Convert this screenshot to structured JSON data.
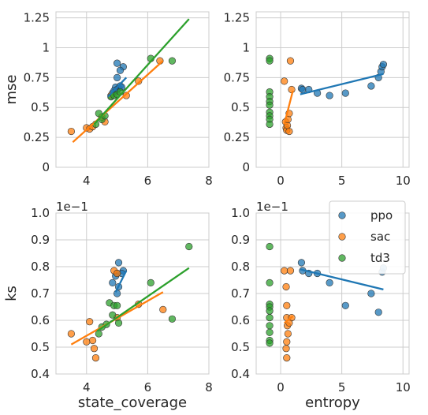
{
  "chart_data": {
    "type": "scatter",
    "colors": {
      "ppo": "#1f77b4",
      "sac": "#ff7f0e",
      "td3": "#2ca02c"
    },
    "grid": true,
    "legend": {
      "placement": "top-right of bottom-right panel",
      "entries": [
        "ppo",
        "sac",
        "td3"
      ]
    },
    "panels": [
      {
        "id": "mse_vs_state_coverage",
        "xlabel": "",
        "ylabel": "mse",
        "xlim": [
          3,
          8
        ],
        "ylim": [
          0,
          1.3
        ],
        "xticks": [
          4,
          6,
          8
        ],
        "xtick_labels": [
          "4",
          "6",
          "8"
        ],
        "yticks": [
          0,
          0.25,
          0.5,
          0.75,
          1,
          1.25
        ],
        "ytick_labels": [
          "0",
          "0.25",
          "0.5",
          "0.75",
          "1",
          "1.25"
        ],
        "offset_text": "",
        "series": [
          {
            "name": "ppo",
            "points": [
              [
                5.0,
                0.87
              ],
              [
                5.2,
                0.84
              ],
              [
                5.1,
                0.81
              ],
              [
                5.0,
                0.75
              ],
              [
                4.95,
                0.67
              ],
              [
                5.05,
                0.66
              ],
              [
                5.0,
                0.65
              ],
              [
                4.9,
                0.64
              ],
              [
                4.85,
                0.62
              ],
              [
                5.1,
                0.68
              ],
              [
                5.15,
                0.67
              ]
            ],
            "fit": [
              [
                4.7,
                0.59
              ],
              [
                5.3,
                0.75
              ]
            ]
          },
          {
            "name": "sac",
            "points": [
              [
                3.5,
                0.3
              ],
              [
                4.0,
                0.33
              ],
              [
                4.1,
                0.32
              ],
              [
                4.2,
                0.34
              ],
              [
                4.6,
                0.38
              ],
              [
                4.5,
                0.42
              ],
              [
                5.3,
                0.6
              ],
              [
                5.7,
                0.72
              ],
              [
                6.4,
                0.89
              ],
              [
                4.8,
                0.6
              ]
            ],
            "fit": [
              [
                3.55,
                0.21
              ],
              [
                6.5,
                0.89
              ]
            ]
          },
          {
            "name": "td3",
            "points": [
              [
                4.3,
                0.36
              ],
              [
                4.5,
                0.4
              ],
              [
                4.6,
                0.43
              ],
              [
                4.8,
                0.59
              ],
              [
                4.9,
                0.6
              ],
              [
                5.0,
                0.61
              ],
              [
                5.1,
                0.63
              ],
              [
                6.1,
                0.91
              ],
              [
                6.8,
                0.89
              ],
              [
                4.4,
                0.45
              ]
            ],
            "fit": [
              [
                4.25,
                0.36
              ],
              [
                7.35,
                1.24
              ]
            ]
          }
        ]
      },
      {
        "id": "mse_vs_entropy",
        "xlabel": "",
        "ylabel": "",
        "xlim": [
          -2,
          10.5
        ],
        "ylim": [
          0,
          1.3
        ],
        "xticks": [
          0,
          5,
          10
        ],
        "xtick_labels": [
          "0",
          "5",
          "10"
        ],
        "yticks": [
          0,
          0.25,
          0.5,
          0.75,
          1,
          1.25
        ],
        "ytick_labels": [
          "0",
          "0.25",
          "0.5",
          "0.75",
          "1",
          "1.25"
        ],
        "offset_text": "",
        "series": [
          {
            "name": "ppo",
            "points": [
              [
                1.7,
                0.66
              ],
              [
                1.8,
                0.65
              ],
              [
                2.3,
                0.65
              ],
              [
                3.0,
                0.62
              ],
              [
                4.0,
                0.6
              ],
              [
                5.3,
                0.62
              ],
              [
                7.4,
                0.68
              ],
              [
                8.0,
                0.75
              ],
              [
                8.2,
                0.8
              ],
              [
                8.3,
                0.84
              ],
              [
                8.4,
                0.86
              ]
            ],
            "fit": [
              [
                1.6,
                0.61
              ],
              [
                8.4,
                0.78
              ]
            ]
          },
          {
            "name": "sac",
            "points": [
              [
                0.3,
                0.72
              ],
              [
                0.4,
                0.38
              ],
              [
                0.45,
                0.33
              ],
              [
                0.5,
                0.31
              ],
              [
                0.55,
                0.35
              ],
              [
                0.6,
                0.4
              ],
              [
                0.7,
                0.3
              ],
              [
                0.8,
                0.89
              ],
              [
                0.9,
                0.65
              ],
              [
                0.7,
                0.45
              ]
            ],
            "fit": [
              [
                0.3,
                0.36
              ],
              [
                1.0,
                0.64
              ]
            ]
          },
          {
            "name": "td3",
            "points": [
              [
                -0.9,
                0.91
              ],
              [
                -0.9,
                0.89
              ],
              [
                -0.9,
                0.63
              ],
              [
                -0.9,
                0.59
              ],
              [
                -0.9,
                0.55
              ],
              [
                -0.9,
                0.52
              ],
              [
                -0.9,
                0.46
              ],
              [
                -0.9,
                0.43
              ],
              [
                -0.9,
                0.4
              ],
              [
                -0.9,
                0.36
              ]
            ],
            "fit": []
          }
        ]
      },
      {
        "id": "ks_vs_state_coverage",
        "xlabel": "state_coverage",
        "ylabel": "ks",
        "xlim": [
          3,
          8
        ],
        "ylim": [
          0.04,
          0.1
        ],
        "xticks": [
          4,
          6,
          8
        ],
        "xtick_labels": [
          "4",
          "6",
          "8"
        ],
        "yticks": [
          0.04,
          0.05,
          0.06,
          0.07,
          0.08,
          0.09,
          0.1
        ],
        "ytick_labels": [
          "0.4",
          "0.5",
          "0.6",
          "0.7",
          "0.8",
          "0.9",
          "1.0"
        ],
        "offset_text": "1e−1",
        "series": [
          {
            "name": "ppo",
            "points": [
              [
                5.05,
                0.0815
              ],
              [
                5.2,
                0.0785
              ],
              [
                5.15,
                0.0775
              ],
              [
                5.0,
                0.0775
              ],
              [
                4.95,
                0.0765
              ],
              [
                4.85,
                0.074
              ],
              [
                5.05,
                0.0725
              ],
              [
                5.0,
                0.07
              ]
            ],
            "fit": [
              [
                4.95,
                0.0705
              ],
              [
                5.3,
                0.0785
              ]
            ]
          },
          {
            "name": "sac",
            "points": [
              [
                3.5,
                0.055
              ],
              [
                4.1,
                0.0595
              ],
              [
                4.2,
                0.0525
              ],
              [
                4.25,
                0.0495
              ],
              [
                4.3,
                0.046
              ],
              [
                4.0,
                0.052
              ],
              [
                4.9,
                0.0785
              ],
              [
                5.0,
                0.0775
              ],
              [
                5.7,
                0.066
              ],
              [
                6.5,
                0.064
              ],
              [
                5.0,
                0.061
              ]
            ],
            "fit": [
              [
                3.5,
                0.051
              ],
              [
                6.5,
                0.0705
              ]
            ]
          },
          {
            "name": "td3",
            "points": [
              [
                4.4,
                0.055
              ],
              [
                4.5,
                0.0575
              ],
              [
                4.75,
                0.0665
              ],
              [
                4.9,
                0.0655
              ],
              [
                4.85,
                0.062
              ],
              [
                4.65,
                0.0585
              ],
              [
                5.05,
                0.059
              ],
              [
                6.1,
                0.074
              ],
              [
                6.8,
                0.0605
              ],
              [
                7.35,
                0.0875
              ],
              [
                5.0,
                0.0655
              ]
            ],
            "fit": [
              [
                4.35,
                0.056
              ],
              [
                7.35,
                0.0795
              ]
            ]
          }
        ]
      },
      {
        "id": "ks_vs_entropy",
        "xlabel": "entropy",
        "ylabel": "",
        "xlim": [
          -2,
          10.5
        ],
        "ylim": [
          0.04,
          0.1
        ],
        "xticks": [
          0,
          5,
          10
        ],
        "xtick_labels": [
          "0",
          "5",
          "10"
        ],
        "yticks": [
          0.04,
          0.05,
          0.06,
          0.07,
          0.08,
          0.09,
          0.1
        ],
        "ytick_labels": [
          "0.4",
          "0.5",
          "0.6",
          "0.7",
          "0.8",
          "0.9",
          "1.0"
        ],
        "offset_text": "1e−1",
        "series": [
          {
            "name": "ppo",
            "points": [
              [
                1.7,
                0.0815
              ],
              [
                1.8,
                0.0785
              ],
              [
                2.3,
                0.0775
              ],
              [
                3.0,
                0.0775
              ],
              [
                4.0,
                0.074
              ],
              [
                5.3,
                0.0655
              ],
              [
                7.4,
                0.07
              ],
              [
                8.0,
                0.063
              ],
              [
                8.3,
                0.078
              ],
              [
                8.4,
                0.0795
              ]
            ],
            "fit": [
              [
                1.6,
                0.079
              ],
              [
                8.4,
                0.0715
              ]
            ]
          },
          {
            "name": "sac",
            "points": [
              [
                0.3,
                0.0785
              ],
              [
                0.45,
                0.0725
              ],
              [
                0.5,
                0.0655
              ],
              [
                0.5,
                0.061
              ],
              [
                0.55,
                0.058
              ],
              [
                0.6,
                0.055
              ],
              [
                0.5,
                0.052
              ],
              [
                0.45,
                0.0495
              ],
              [
                0.5,
                0.046
              ],
              [
                0.8,
                0.0785
              ],
              [
                0.9,
                0.061
              ],
              [
                0.7,
                0.059
              ]
            ],
            "fit": [
              [
                0.3,
                0.059
              ],
              [
                1.0,
                0.0615
              ]
            ]
          },
          {
            "name": "td3",
            "points": [
              [
                -0.9,
                0.0875
              ],
              [
                -0.9,
                0.074
              ],
              [
                -0.9,
                0.066
              ],
              [
                -0.9,
                0.065
              ],
              [
                -0.9,
                0.0635
              ],
              [
                -0.9,
                0.061
              ],
              [
                -0.9,
                0.058
              ],
              [
                -0.9,
                0.0555
              ],
              [
                -0.9,
                0.0525
              ],
              [
                -0.9,
                0.0515
              ]
            ],
            "fit": []
          }
        ]
      }
    ]
  }
}
